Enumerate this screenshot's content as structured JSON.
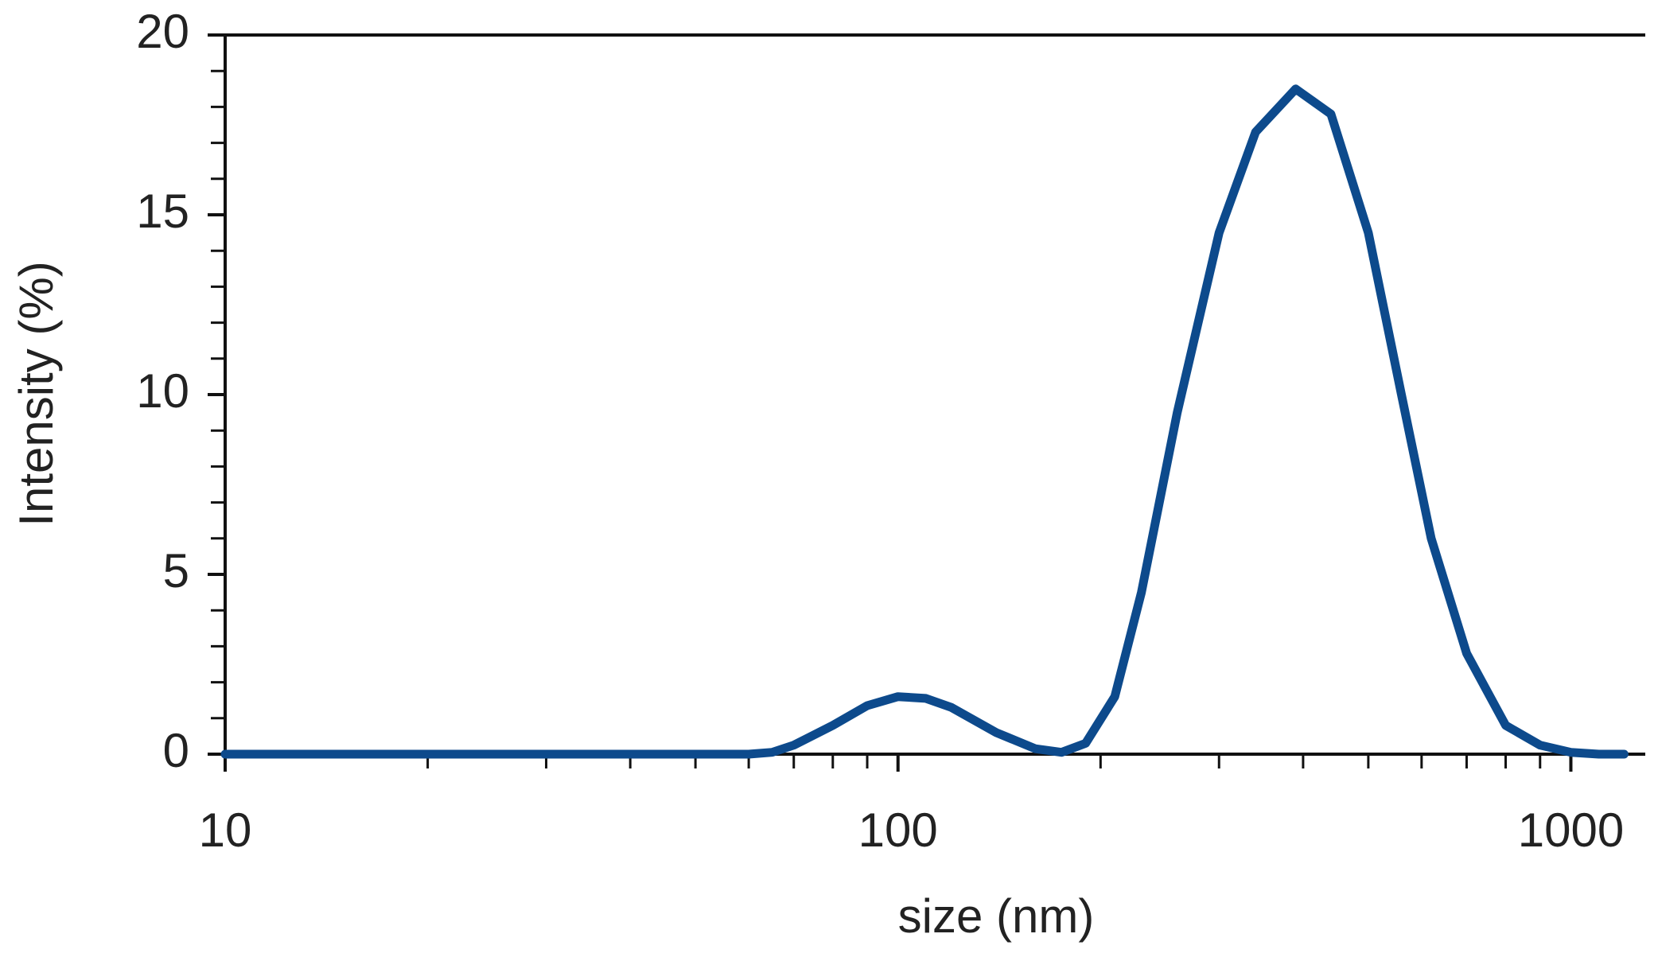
{
  "chart_data": {
    "type": "line",
    "xlabel": "size (nm)",
    "ylabel": "Intensity (%)",
    "x_scale": "log",
    "xlim": [
      10,
      1290
    ],
    "xticks": [
      10,
      100,
      1000
    ],
    "xminorticks": [
      20,
      30,
      40,
      50,
      60,
      70,
      80,
      90,
      200,
      300,
      400,
      500,
      600,
      700,
      800,
      900
    ],
    "ylim": [
      0,
      20
    ],
    "yticks": [
      0,
      5,
      10,
      15,
      20
    ],
    "yminorticks": [
      1,
      2,
      3,
      4,
      6,
      7,
      8,
      9,
      11,
      12,
      13,
      14,
      16,
      17,
      18,
      19
    ],
    "series": [
      {
        "color": "#0d4a8c",
        "x": [
          10,
          20,
          40,
          60,
          65,
          70,
          80,
          90,
          100,
          110,
          120,
          140,
          160,
          175,
          190,
          210,
          230,
          260,
          300,
          340,
          390,
          440,
          500,
          560,
          620,
          700,
          800,
          900,
          1000,
          1100,
          1200
        ],
        "values": [
          0,
          0,
          0,
          0,
          0.05,
          0.25,
          0.8,
          1.35,
          1.6,
          1.55,
          1.3,
          0.6,
          0.15,
          0.05,
          0.3,
          1.6,
          4.5,
          9.5,
          14.5,
          17.3,
          18.5,
          17.8,
          14.5,
          10,
          6,
          2.8,
          0.8,
          0.25,
          0.05,
          0,
          0
        ]
      }
    ]
  }
}
